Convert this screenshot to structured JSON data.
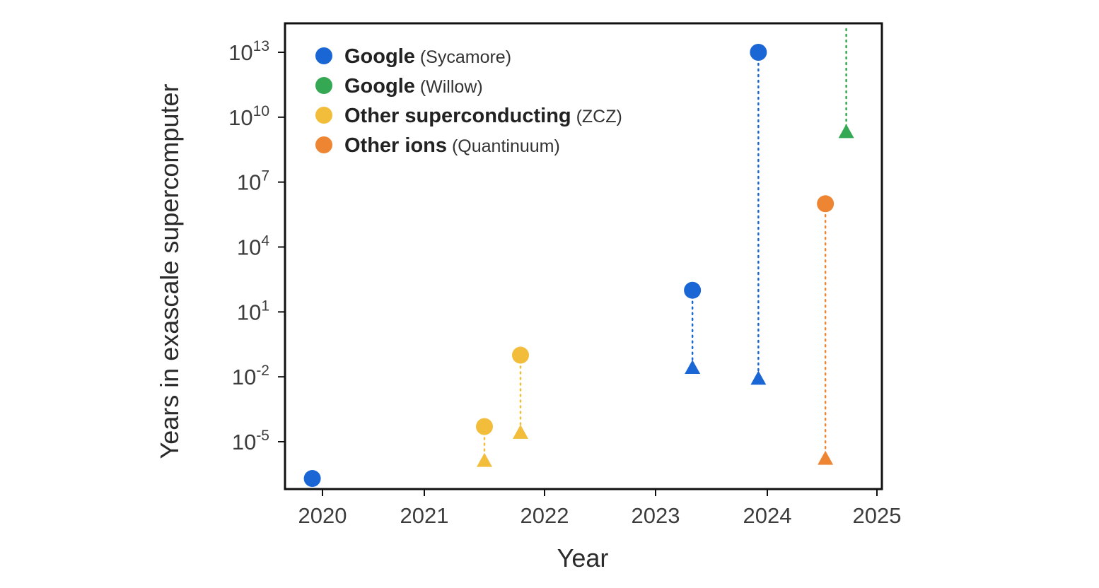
{
  "chart_data": {
    "type": "scatter",
    "title": "",
    "xlabel": "Year",
    "ylabel": "Years in exascale supercomputer",
    "x_scale": "linear",
    "y_scale": "log",
    "xlim": [
      2019.7,
      2025.0
    ],
    "ylim_log10": [
      -8,
      14
    ],
    "x_ticks": [
      {
        "value": 2020,
        "label": "2020"
      },
      {
        "value": 2021,
        "label": "2021"
      },
      {
        "value": 2022,
        "label": "2022"
      },
      {
        "value": 2023,
        "label": "2023"
      },
      {
        "value": 2024,
        "label": "2024"
      },
      {
        "value": 2025,
        "label": "2025"
      }
    ],
    "y_ticks": [
      {
        "exp": 13,
        "base": "10",
        "sup": "13"
      },
      {
        "exp": 10,
        "base": "10",
        "sup": "10"
      },
      {
        "exp": 7,
        "base": "10",
        "sup": "7"
      },
      {
        "exp": 4,
        "base": "10",
        "sup": "4"
      },
      {
        "exp": 1,
        "base": "10",
        "sup": "1"
      },
      {
        "exp": -2,
        "base": "10",
        "sup": "-2"
      },
      {
        "exp": -5,
        "base": "10",
        "sup": "-5"
      }
    ],
    "legend_position": "top-left",
    "series": [
      {
        "name": "Google",
        "detail": "(Sycamore)",
        "color": "#1a66d4",
        "points": [
          {
            "x": 2019.9,
            "circle_log10": -6.7,
            "triangle_log10": null
          },
          {
            "x": 2023.33,
            "circle_log10": 2.0,
            "triangle_log10": -1.6
          },
          {
            "x": 2023.92,
            "circle_log10": 13.0,
            "triangle_log10": -2.1
          }
        ]
      },
      {
        "name": "Google",
        "detail": "(Willow)",
        "color": "#34a853",
        "points": [
          {
            "x": 2024.72,
            "circle_log10": null,
            "triangle_log10": 9.3,
            "arrow_up": true
          }
        ]
      },
      {
        "name": "Other superconducting",
        "detail": "(ZCZ)",
        "color": "#f2bd3a",
        "points": [
          {
            "x": 2021.5,
            "circle_log10": -4.3,
            "triangle_log10": -5.9
          },
          {
            "x": 2021.8,
            "circle_log10": -1.0,
            "triangle_log10": -4.6
          }
        ]
      },
      {
        "name": "Other ions",
        "detail": "(Quantinuum)",
        "color": "#ee8533",
        "points": [
          {
            "x": 2024.53,
            "circle_log10": 6.0,
            "triangle_log10": -5.8
          }
        ]
      }
    ]
  }
}
